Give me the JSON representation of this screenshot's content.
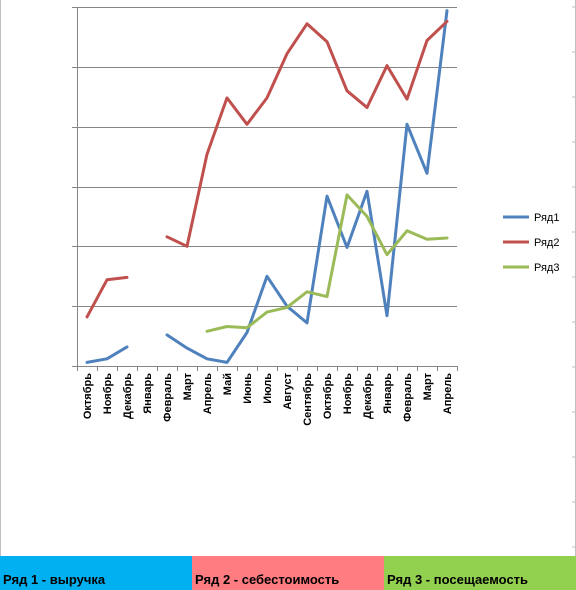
{
  "chart_data": {
    "type": "line",
    "categories": [
      "Октябрь",
      "Ноябрь",
      "Декабрь",
      "Январь",
      "Февраль",
      "Март",
      "Апрель",
      "Май",
      "Июнь",
      "Июль",
      "Август",
      "Сентябрь",
      "Октябрь",
      "Ноябрь",
      "Декабрь",
      "Январь",
      "Февраль",
      "Март",
      "Апрель"
    ],
    "series": [
      {
        "name": "Ряд1",
        "color": "#4f81bd",
        "values": [
          0.3,
          0.6,
          1.6,
          null,
          2.6,
          1.5,
          0.6,
          0.3,
          2.8,
          7.5,
          5.0,
          3.6,
          14.2,
          9.9,
          14.6,
          4.2,
          20.2,
          16.1,
          29.7
        ]
      },
      {
        "name": "Ряд2",
        "color": "#c0504d",
        "values": [
          4.1,
          7.2,
          7.4,
          null,
          10.8,
          10.0,
          17.7,
          22.4,
          20.2,
          22.4,
          26.1,
          28.6,
          27.1,
          23.0,
          21.6,
          25.1,
          22.3,
          27.2,
          28.8
        ]
      },
      {
        "name": "Ряд3",
        "color": "#9bbb59",
        "values": [
          null,
          null,
          null,
          null,
          null,
          null,
          2.9,
          3.3,
          3.2,
          4.5,
          4.9,
          6.2,
          5.8,
          14.3,
          12.5,
          9.3,
          11.3,
          10.6,
          10.7
        ]
      }
    ],
    "ylim": [
      0,
      30
    ],
    "y_gridlines": [
      5,
      10,
      15,
      20,
      25,
      30
    ],
    "y_tick_labels_visible": false,
    "grid": true,
    "legend_position": "right"
  },
  "legend_bar": [
    {
      "label": "Ряд 1 - выручка",
      "color": "#00b0f0"
    },
    {
      "label": "Ряд 2 - себестоимость",
      "color": "#ff7c80"
    },
    {
      "label": "Ряд 3 - посещаемость",
      "color": "#92d050"
    }
  ]
}
